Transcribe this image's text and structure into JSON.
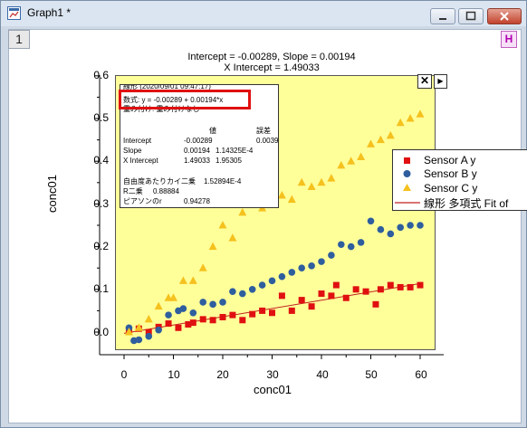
{
  "window": {
    "title": "Graph1 *",
    "layer_tab": "1",
    "h_button": "H"
  },
  "plot": {
    "title_line1": "Intercept = -0.00289, Slope = 0.00194",
    "title_line2": "X Intercept = 1.49033",
    "xlabel": "conc01",
    "ylabel": "conc01",
    "ytick_labels": [
      "0.6",
      "0.5",
      "0.4",
      "0.3",
      "0.2",
      "0.1",
      "0.0"
    ],
    "xtick_labels": [
      "0",
      "10",
      "20",
      "30",
      "40",
      "50",
      "60"
    ]
  },
  "stats_box": {
    "header": "線形 (2020/09/01 09:47:17)",
    "equation": "数式: y = -0.00289 + 0.00194*x",
    "weighting": "重み付け: 重み付けなし",
    "col_value": "値",
    "col_error": "誤差",
    "rows": [
      {
        "name": "Intercept",
        "value": "-0.00289",
        "error": "0.00393"
      },
      {
        "name": "Slope",
        "value": "0.00194",
        "error": "1.14325E-4"
      },
      {
        "name": "X Intercept",
        "value": "1.49033",
        "error": "1.95305"
      }
    ],
    "stat_rows": [
      {
        "name": "自由度あたりカイ二乗",
        "value": "1.52894E-4"
      },
      {
        "name": "R二乗",
        "value": "0.88884"
      },
      {
        "name": "ピアソンのr",
        "value": "0.94278"
      }
    ]
  },
  "legend": {
    "items": [
      {
        "label": "Sensor A y",
        "symbol": "square",
        "color": "#e01010"
      },
      {
        "label": "Sensor B y",
        "symbol": "circle",
        "color": "#2e5e9e"
      },
      {
        "label": "Sensor C y",
        "symbol": "triangle",
        "color": "#f5c11e"
      },
      {
        "label": "線形 多項式 Fit of",
        "symbol": "line",
        "color": "#c02020"
      }
    ]
  },
  "chart_data": {
    "type": "scatter",
    "title": "Intercept = -0.00289, Slope = 0.00194",
    "xlabel": "conc01",
    "ylabel": "conc01",
    "xlim": [
      -5,
      64
    ],
    "ylim": [
      -0.06,
      0.6
    ],
    "legend_position": "right",
    "grid": false,
    "series": [
      {
        "name": "Sensor A y",
        "marker": "square",
        "color": "#e01010",
        "x": [
          1,
          3,
          5,
          7,
          9,
          11,
          13,
          14,
          16,
          18,
          20,
          22,
          24,
          26,
          28,
          30,
          32,
          34,
          36,
          38,
          40,
          42,
          43,
          45,
          47,
          49,
          51,
          52,
          54,
          56,
          58,
          60
        ],
        "y": [
          0.005,
          0.008,
          0.0,
          0.012,
          0.02,
          0.01,
          0.018,
          0.022,
          0.03,
          0.028,
          0.035,
          0.04,
          0.028,
          0.042,
          0.05,
          0.045,
          0.085,
          0.05,
          0.075,
          0.06,
          0.09,
          0.085,
          0.11,
          0.08,
          0.1,
          0.095,
          0.065,
          0.1,
          0.11,
          0.105,
          0.105,
          0.11
        ]
      },
      {
        "name": "Sensor B y",
        "marker": "circle",
        "color": "#2e5e9e",
        "x": [
          1,
          2,
          3,
          5,
          7,
          9,
          11,
          12,
          14,
          16,
          18,
          20,
          22,
          24,
          26,
          28,
          30,
          32,
          34,
          36,
          38,
          40,
          42,
          44,
          46,
          48,
          50,
          52,
          54,
          56,
          58,
          60
        ],
        "y": [
          0.01,
          -0.02,
          -0.018,
          -0.01,
          0.005,
          0.04,
          0.05,
          0.055,
          0.045,
          0.07,
          0.065,
          0.07,
          0.095,
          0.09,
          0.1,
          0.11,
          0.12,
          0.13,
          0.14,
          0.15,
          0.155,
          0.165,
          0.18,
          0.205,
          0.2,
          0.21,
          0.26,
          0.24,
          0.23,
          0.245,
          0.25,
          0.25
        ]
      },
      {
        "name": "Sensor C y",
        "marker": "triangle",
        "color": "#f5c11e",
        "x": [
          1,
          3,
          5,
          7,
          9,
          10,
          12,
          14,
          16,
          18,
          20,
          22,
          24,
          26,
          28,
          30,
          32,
          34,
          36,
          38,
          40,
          42,
          44,
          46,
          48,
          50,
          52,
          54,
          56,
          58,
          60
        ],
        "y": [
          0.0,
          0.01,
          0.03,
          0.06,
          0.08,
          0.08,
          0.12,
          0.12,
          0.15,
          0.2,
          0.25,
          0.22,
          0.28,
          0.3,
          0.29,
          0.3,
          0.32,
          0.31,
          0.35,
          0.34,
          0.35,
          0.36,
          0.39,
          0.4,
          0.41,
          0.44,
          0.45,
          0.46,
          0.49,
          0.5,
          0.51
        ]
      },
      {
        "name": "線形 多項式 Fit of",
        "type": "line",
        "color": "#c02020",
        "x": [
          0,
          60
        ],
        "y": [
          -0.00289,
          0.11351
        ]
      }
    ]
  }
}
